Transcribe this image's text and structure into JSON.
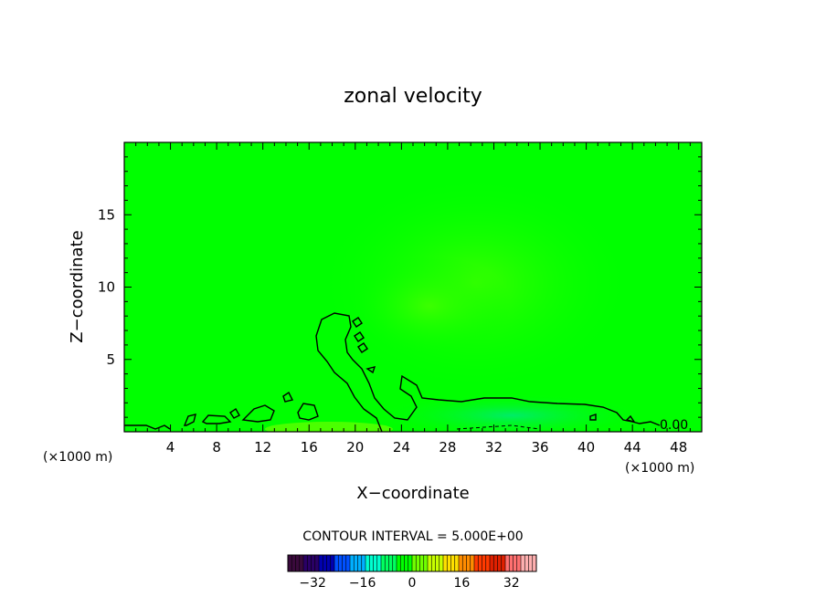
{
  "chart_data": {
    "type": "heatmap",
    "title": "zonal velocity",
    "xlabel": "X−coordinate",
    "ylabel": "Z−coordinate",
    "x_unit_left": "(×1000 m)",
    "x_unit_right": "(×1000 m)",
    "xlim": [
      0,
      50
    ],
    "ylim": [
      0,
      20
    ],
    "x_ticks": [
      4,
      8,
      12,
      16,
      20,
      24,
      28,
      32,
      36,
      40,
      44,
      48
    ],
    "x_tick_labels": [
      "4",
      "8",
      "12",
      "16",
      "20",
      "24",
      "28",
      "32",
      "36",
      "40",
      "44",
      "48"
    ],
    "y_ticks": [
      5,
      10,
      15
    ],
    "y_tick_labels": [
      "5",
      "10",
      "15"
    ],
    "background_value": 0,
    "contour_label": "0.00",
    "contour_interval_text": "CONTOUR INTERVAL = 5.000E+00",
    "colorbar": {
      "range": [
        -40,
        40
      ],
      "ticks": [
        -32,
        -16,
        0,
        16,
        32
      ],
      "tick_labels": [
        "−32",
        "−16",
        "0",
        "16",
        "32"
      ],
      "colors": [
        "#3a0a3c",
        "#2a0066",
        "#0000b0",
        "#0050ff",
        "#00b0ff",
        "#00ffd0",
        "#00ff60",
        "#00ff00",
        "#70ff00",
        "#c8ff00",
        "#ffe000",
        "#ff8c00",
        "#ff3a00",
        "#e02000",
        "#ff7070",
        "#ffb0b0"
      ]
    },
    "colors": {
      "field_background": "#00ff00",
      "positive_region": "#33ff00",
      "negative_region": "#00f060"
    }
  }
}
